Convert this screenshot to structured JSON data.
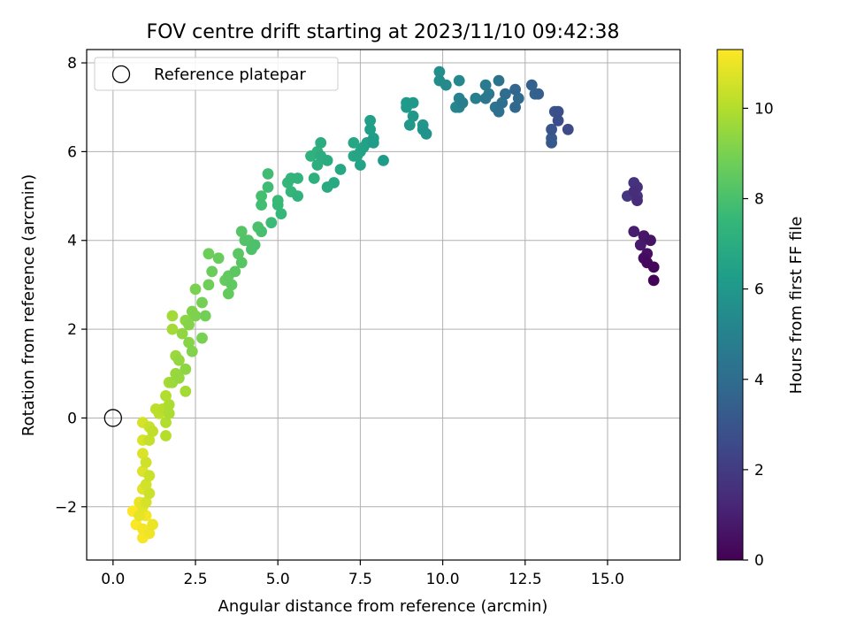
{
  "chart_data": {
    "type": "scatter",
    "title": "FOV centre drift starting at 2023/11/10 09:42:38",
    "xlabel": "Angular distance from reference (arcmin)",
    "ylabel": "Rotation from reference (arcmin)",
    "xlim": [
      -0.8,
      17.2
    ],
    "ylim": [
      -3.2,
      8.3
    ],
    "x_ticks": [
      0.0,
      2.5,
      5.0,
      7.5,
      10.0,
      12.5,
      15.0
    ],
    "x_tick_labels": [
      "0.0",
      "2.5",
      "5.0",
      "7.5",
      "10.0",
      "12.5",
      "15.0"
    ],
    "y_ticks": [
      -2,
      0,
      2,
      4,
      6,
      8
    ],
    "y_tick_labels": [
      "−2",
      "0",
      "2",
      "4",
      "6",
      "8"
    ],
    "grid": true,
    "legend": {
      "placement": "upper-left",
      "entries": [
        {
          "label": "Reference platepar",
          "marker": "open-circle"
        }
      ]
    },
    "reference_point": {
      "x": 0.0,
      "y": 0.0
    },
    "colorbar": {
      "label": "Hours from first FF file",
      "range": [
        0,
        11.3
      ],
      "ticks": [
        0,
        2,
        4,
        6,
        8,
        10
      ],
      "tick_labels": [
        "0",
        "2",
        "4",
        "6",
        "8",
        "10"
      ],
      "colormap": "viridis",
      "colors": [
        "#440154",
        "#482878",
        "#3e4989",
        "#31688e",
        "#26828e",
        "#1f9e89",
        "#35b779",
        "#6ece58",
        "#b5de2b",
        "#fde725"
      ]
    },
    "points": [
      [
        16.4,
        3.1,
        0.1
      ],
      [
        16.4,
        3.4,
        0.2
      ],
      [
        16.2,
        3.5,
        0.3
      ],
      [
        16.1,
        3.6,
        0.4
      ],
      [
        16.2,
        3.7,
        0.5
      ],
      [
        16.3,
        4.0,
        0.6
      ],
      [
        16.1,
        4.1,
        0.7
      ],
      [
        16.0,
        3.9,
        0.8
      ],
      [
        15.8,
        4.2,
        0.9
      ],
      [
        16.0,
        3.9,
        1.0
      ],
      [
        15.9,
        4.9,
        1.4
      ],
      [
        15.8,
        5.1,
        1.5
      ],
      [
        15.9,
        5.2,
        1.6
      ],
      [
        15.8,
        5.3,
        1.7
      ],
      [
        15.6,
        5.0,
        1.8
      ],
      [
        15.9,
        5.0,
        1.9
      ],
      [
        13.8,
        6.5,
        2.6
      ],
      [
        13.5,
        6.7,
        2.7
      ],
      [
        13.5,
        6.9,
        2.8
      ],
      [
        13.4,
        6.9,
        2.9
      ],
      [
        13.3,
        6.5,
        3.0
      ],
      [
        13.3,
        6.2,
        3.1
      ],
      [
        13.3,
        6.3,
        3.2
      ],
      [
        12.9,
        7.3,
        3.4
      ],
      [
        12.7,
        7.5,
        3.5
      ],
      [
        12.8,
        7.3,
        3.6
      ],
      [
        12.2,
        7.4,
        3.7
      ],
      [
        12.2,
        7.0,
        3.8
      ],
      [
        12.3,
        7.2,
        3.9
      ],
      [
        11.9,
        7.3,
        4.0
      ],
      [
        11.8,
        7.1,
        4.1
      ],
      [
        11.7,
        6.9,
        4.2
      ],
      [
        11.7,
        7.6,
        4.3
      ],
      [
        11.6,
        7.0,
        4.4
      ],
      [
        11.3,
        7.2,
        4.5
      ],
      [
        11.4,
        7.3,
        4.6
      ],
      [
        11.3,
        7.5,
        4.7
      ],
      [
        11.0,
        7.2,
        4.8
      ],
      [
        10.6,
        7.1,
        4.9
      ],
      [
        10.5,
        7.2,
        5.0
      ],
      [
        10.5,
        7.0,
        5.1
      ],
      [
        10.4,
        7.0,
        5.2
      ],
      [
        10.5,
        7.6,
        5.3
      ],
      [
        10.1,
        7.5,
        5.4
      ],
      [
        9.9,
        7.6,
        5.5
      ],
      [
        9.9,
        7.8,
        5.6
      ],
      [
        9.5,
        6.4,
        5.8
      ],
      [
        9.4,
        6.5,
        5.85
      ],
      [
        9.4,
        6.6,
        5.9
      ],
      [
        9.1,
        6.8,
        5.95
      ],
      [
        9.0,
        6.6,
        6.0
      ],
      [
        9.1,
        7.1,
        6.05
      ],
      [
        8.9,
        7.1,
        6.1
      ],
      [
        8.9,
        7.0,
        6.15
      ],
      [
        8.2,
        5.8,
        6.2
      ],
      [
        7.9,
        6.2,
        6.25
      ],
      [
        7.9,
        6.3,
        6.3
      ],
      [
        7.8,
        6.5,
        6.35
      ],
      [
        7.8,
        6.7,
        6.4
      ],
      [
        7.7,
        6.2,
        6.45
      ],
      [
        7.6,
        6.1,
        6.5
      ],
      [
        7.5,
        5.7,
        6.55
      ],
      [
        7.5,
        6.0,
        6.6
      ],
      [
        7.4,
        5.9,
        6.65
      ],
      [
        7.3,
        6.2,
        6.7
      ],
      [
        7.3,
        5.9,
        6.75
      ],
      [
        6.9,
        5.6,
        6.8
      ],
      [
        6.7,
        5.3,
        6.85
      ],
      [
        6.5,
        5.2,
        6.9
      ],
      [
        6.5,
        5.8,
        6.95
      ],
      [
        6.3,
        5.9,
        7.0
      ],
      [
        6.3,
        6.2,
        7.05
      ],
      [
        6.2,
        5.7,
        7.1
      ],
      [
        6.1,
        5.4,
        7.15
      ],
      [
        6.2,
        6.0,
        7.2
      ],
      [
        6.0,
        5.9,
        7.25
      ],
      [
        5.6,
        5.0,
        7.3
      ],
      [
        5.6,
        5.4,
        7.35
      ],
      [
        5.4,
        5.4,
        7.4
      ],
      [
        5.4,
        5.1,
        7.45
      ],
      [
        5.3,
        5.3,
        7.5
      ],
      [
        5.1,
        4.6,
        7.55
      ],
      [
        5.0,
        4.8,
        7.6
      ],
      [
        5.0,
        4.9,
        7.65
      ],
      [
        4.8,
        4.4,
        7.7
      ],
      [
        4.7,
        5.2,
        7.75
      ],
      [
        4.7,
        5.5,
        7.8
      ],
      [
        4.5,
        4.8,
        7.85
      ],
      [
        4.5,
        5.0,
        7.9
      ],
      [
        4.5,
        4.2,
        7.95
      ],
      [
        4.4,
        4.3,
        8.0
      ],
      [
        4.3,
        3.9,
        8.05
      ],
      [
        4.2,
        3.8,
        8.1
      ],
      [
        4.1,
        4.0,
        8.15
      ],
      [
        4.0,
        4.0,
        8.2
      ],
      [
        3.9,
        4.2,
        8.25
      ],
      [
        3.9,
        3.5,
        8.3
      ],
      [
        3.8,
        3.7,
        8.35
      ],
      [
        3.7,
        3.3,
        8.4
      ],
      [
        3.6,
        3.0,
        8.45
      ],
      [
        3.5,
        3.2,
        8.5
      ],
      [
        3.5,
        2.8,
        8.55
      ],
      [
        3.4,
        3.1,
        8.6
      ],
      [
        3.2,
        3.6,
        8.65
      ],
      [
        3.0,
        3.3,
        8.7
      ],
      [
        2.9,
        3.7,
        8.75
      ],
      [
        2.9,
        3.0,
        8.8
      ],
      [
        2.8,
        2.3,
        8.85
      ],
      [
        2.7,
        2.6,
        8.9
      ],
      [
        2.7,
        1.8,
        8.95
      ],
      [
        2.5,
        2.9,
        9.0
      ],
      [
        2.5,
        2.3,
        9.05
      ],
      [
        2.4,
        2.4,
        9.1
      ],
      [
        2.4,
        1.5,
        9.15
      ],
      [
        2.3,
        2.1,
        9.2
      ],
      [
        2.3,
        1.7,
        9.25
      ],
      [
        2.2,
        2.2,
        9.3
      ],
      [
        2.2,
        1.1,
        9.35
      ],
      [
        2.1,
        1.9,
        9.4
      ],
      [
        2.0,
        1.3,
        9.45
      ],
      [
        2.0,
        0.9,
        9.5
      ],
      [
        1.9,
        1.0,
        9.55
      ],
      [
        1.9,
        1.4,
        9.6
      ],
      [
        1.8,
        0.8,
        9.65
      ],
      [
        1.8,
        2.3,
        9.7
      ],
      [
        1.8,
        2.0,
        9.72
      ],
      [
        2.2,
        0.6,
        9.75
      ],
      [
        1.7,
        0.8,
        9.8
      ],
      [
        1.7,
        0.1,
        9.85
      ],
      [
        1.7,
        0.3,
        9.9
      ],
      [
        1.6,
        0.5,
        9.95
      ],
      [
        1.6,
        -0.1,
        10.0
      ],
      [
        1.6,
        -0.4,
        10.05
      ],
      [
        1.5,
        0.2,
        10.1
      ],
      [
        1.4,
        0.1,
        10.15
      ],
      [
        1.3,
        0.2,
        10.2
      ],
      [
        1.2,
        -0.3,
        10.25
      ],
      [
        1.1,
        -0.5,
        10.3
      ],
      [
        1.1,
        -0.2,
        10.35
      ],
      [
        1.1,
        -1.3,
        10.4
      ],
      [
        1.1,
        -1.7,
        10.45
      ],
      [
        1.0,
        -1.0,
        10.5
      ],
      [
        1.0,
        -1.5,
        10.55
      ],
      [
        1.0,
        -1.9,
        10.6
      ],
      [
        0.9,
        -0.5,
        10.65
      ],
      [
        0.9,
        -0.8,
        10.7
      ],
      [
        0.9,
        -1.2,
        10.75
      ],
      [
        0.9,
        -1.6,
        10.8
      ],
      [
        0.9,
        -2.0,
        10.85
      ],
      [
        0.8,
        -2.2,
        10.9
      ],
      [
        0.8,
        -1.9,
        10.95
      ],
      [
        1.2,
        -2.4,
        11.0
      ],
      [
        1.1,
        -2.6,
        11.05
      ],
      [
        1.0,
        -2.2,
        11.1
      ],
      [
        0.9,
        -2.5,
        11.15
      ],
      [
        0.9,
        -2.7,
        11.2
      ],
      [
        0.7,
        -2.4,
        11.25
      ],
      [
        0.6,
        -2.1,
        11.3
      ],
      [
        0.9,
        -0.1,
        10.6
      ]
    ]
  }
}
